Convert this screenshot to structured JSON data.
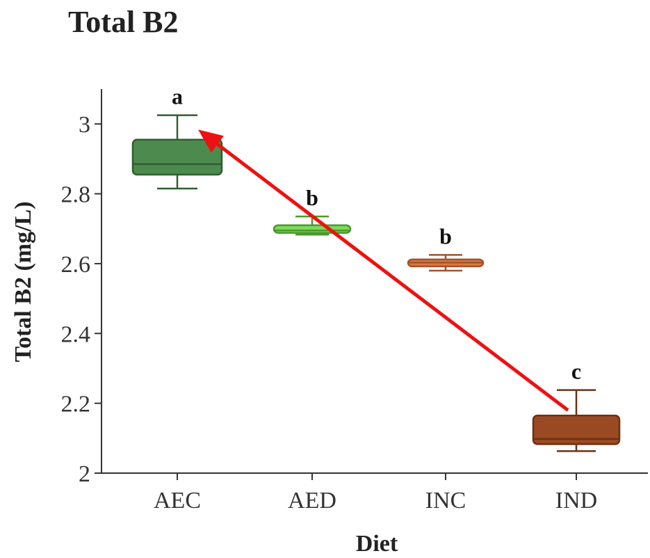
{
  "chart_data": {
    "type": "box",
    "title": "Total B2",
    "xlabel": "Diet",
    "ylabel": "Total B2 (mg/L)",
    "ylim": [
      2,
      3.1
    ],
    "yticks": [
      2,
      2.2,
      2.4,
      2.6,
      2.8,
      3
    ],
    "ytick_labels": [
      "2",
      "2.2",
      "2.4",
      "2.6",
      "2.8",
      "3"
    ],
    "categories": [
      "AEC",
      "AED",
      "INC",
      "IND"
    ],
    "boxes": [
      {
        "category": "AEC",
        "min": 2.815,
        "q1": 2.855,
        "median": 2.885,
        "q3": 2.955,
        "max": 3.025,
        "label": "a",
        "fill": "#4d8a4d",
        "stroke": "#2f5e2f"
      },
      {
        "category": "AED",
        "min": 2.683,
        "q1": 2.688,
        "median": 2.695,
        "q3": 2.71,
        "max": 2.735,
        "label": "b",
        "fill": "#7ed957",
        "stroke": "#4a9a2e"
      },
      {
        "category": "INC",
        "min": 2.58,
        "q1": 2.592,
        "median": 2.603,
        "q3": 2.612,
        "max": 2.625,
        "label": "b",
        "fill": "#d77a45",
        "stroke": "#a3532a"
      },
      {
        "category": "IND",
        "min": 2.063,
        "q1": 2.083,
        "median": 2.098,
        "q3": 2.165,
        "max": 2.238,
        "label": "c",
        "fill": "#9a4a22",
        "stroke": "#6b3014"
      }
    ],
    "annotation_arrow": {
      "from": {
        "category": "IND",
        "value": 2.18
      },
      "to": {
        "category": "AEC",
        "value": 2.975
      },
      "color": "#ee1111"
    },
    "grid": false
  }
}
